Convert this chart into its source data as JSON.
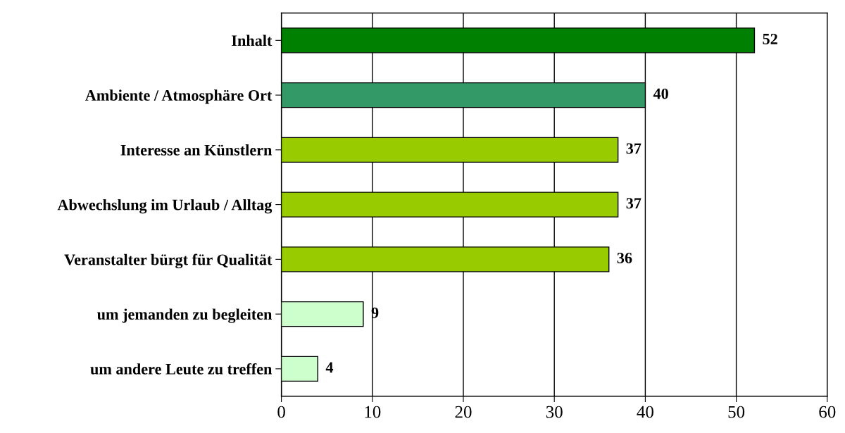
{
  "chart_data": {
    "type": "bar",
    "orientation": "horizontal",
    "categories": [
      "Inhalt",
      "Ambiente / Atmosphäre Ort",
      "Interesse an Künstlern",
      "Abwechslung im Urlaub / Alltag",
      "Veranstalter bürgt für Qualität",
      "um jemanden zu begleiten",
      "um andere Leute zu treffen"
    ],
    "values": [
      52,
      40,
      37,
      37,
      36,
      9,
      4
    ],
    "colors": [
      "#008000",
      "#339966",
      "#99cc00",
      "#99cc00",
      "#99cc00",
      "#ccffcc",
      "#ccffcc"
    ],
    "xlim": [
      0,
      60
    ],
    "xticks": [
      0,
      10,
      20,
      30,
      40,
      50,
      60
    ],
    "grid": "x",
    "data_labels": true
  }
}
